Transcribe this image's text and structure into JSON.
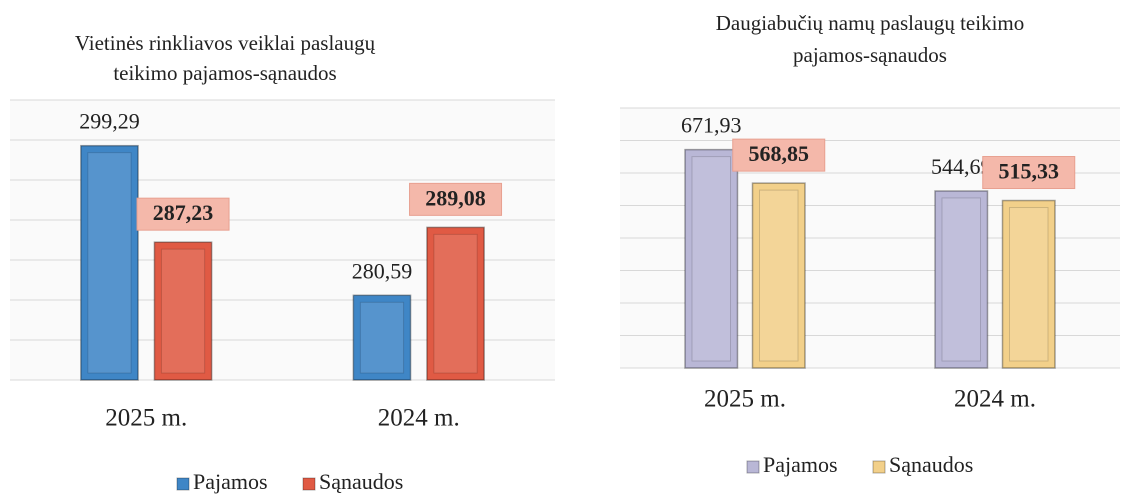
{
  "chart_data": [
    {
      "type": "bar",
      "title": [
        "Vietinės rinkliavos veiklai paslaugų",
        "teikimo pajamos-sąnaudos"
      ],
      "categories": [
        "2025 m.",
        "2024 m."
      ],
      "series": [
        {
          "name": "Pajamos",
          "color": "#3f86c6",
          "values": [
            299.29,
            280.59
          ],
          "value_labels": [
            "299,29",
            "280,59"
          ]
        },
        {
          "name": "Sąnaudos",
          "color": "#e05a44",
          "values": [
            287.23,
            289.08
          ],
          "value_labels": [
            "287,23",
            "289,08"
          ]
        }
      ],
      "ylim": [
        270,
        305
      ],
      "yticks": [
        270,
        275,
        280,
        285,
        290,
        295,
        300,
        305
      ],
      "grid": true
    },
    {
      "type": "bar",
      "title": [
        "Daugiabučių namų paslaugų teikimo",
        "pajamos-sąnaudos"
      ],
      "categories": [
        "2025 m.",
        "2024 m."
      ],
      "series": [
        {
          "name": "Pajamos",
          "color": "#b9b7d6",
          "values": [
            671.93,
            544.69
          ],
          "value_labels": [
            "671,93",
            "544,69"
          ]
        },
        {
          "name": "Sąnaudos",
          "color": "#f2d08a",
          "values": [
            568.85,
            515.33
          ],
          "value_labels": [
            "568,85",
            "515,33"
          ]
        }
      ],
      "ylim": [
        0,
        800
      ],
      "yticks": [
        0,
        100,
        200,
        300,
        400,
        500,
        600,
        700,
        800
      ],
      "grid": true
    }
  ]
}
